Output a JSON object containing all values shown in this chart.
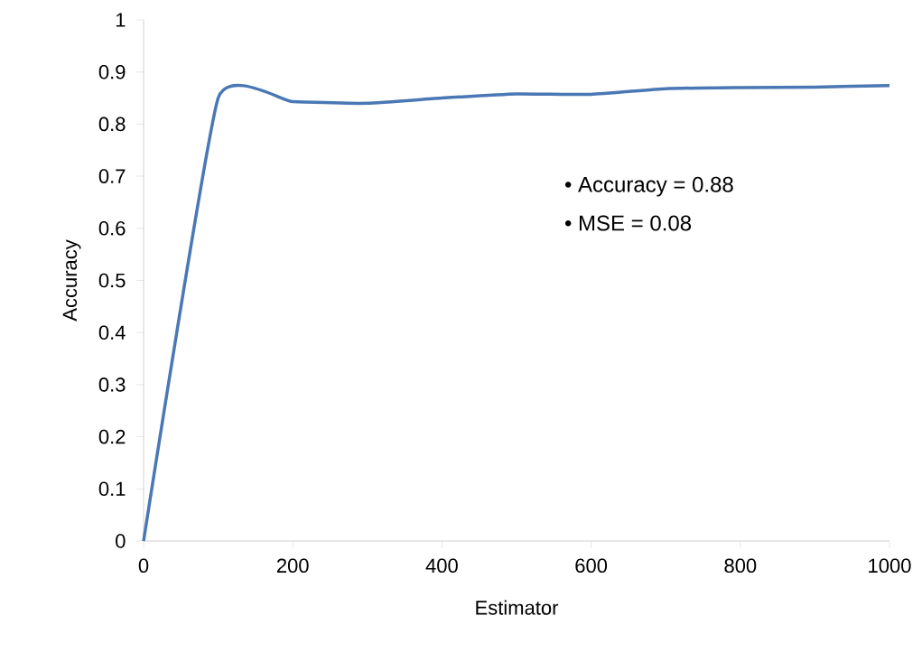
{
  "chart_data": {
    "type": "line",
    "xlabel": "Estimator",
    "ylabel": "Accuracy",
    "annotations": [
      "• Accuracy = 0.88",
      "• MSE = 0.08"
    ],
    "x": [
      0,
      100,
      200,
      300,
      400,
      500,
      600,
      700,
      800,
      900,
      1000
    ],
    "series": [
      {
        "color": "#4a78b4",
        "values": [
          0,
          0.85,
          0.843,
          0.84,
          0.85,
          0.858,
          0.857,
          0.868,
          0.87,
          0.871,
          0.874
        ]
      }
    ],
    "xlim": [
      0,
      1000
    ],
    "ylim": [
      0,
      1
    ],
    "xticks": [
      0,
      200,
      400,
      600,
      800,
      1000
    ],
    "yticks": [
      0,
      0.1,
      0.2,
      0.3,
      0.4,
      0.5,
      0.6,
      0.7,
      0.8,
      0.9,
      1
    ],
    "line_style": "solid"
  }
}
